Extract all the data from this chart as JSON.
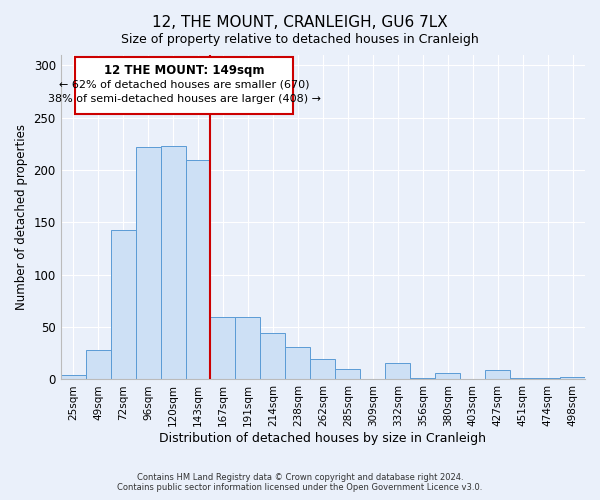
{
  "title": "12, THE MOUNT, CRANLEIGH, GU6 7LX",
  "subtitle": "Size of property relative to detached houses in Cranleigh",
  "xlabel": "Distribution of detached houses by size in Cranleigh",
  "ylabel": "Number of detached properties",
  "bar_labels": [
    "25sqm",
    "49sqm",
    "72sqm",
    "96sqm",
    "120sqm",
    "143sqm",
    "167sqm",
    "191sqm",
    "214sqm",
    "238sqm",
    "262sqm",
    "285sqm",
    "309sqm",
    "332sqm",
    "356sqm",
    "380sqm",
    "403sqm",
    "427sqm",
    "451sqm",
    "474sqm",
    "498sqm"
  ],
  "bar_values": [
    4,
    28,
    143,
    222,
    223,
    210,
    60,
    60,
    44,
    31,
    20,
    10,
    0,
    16,
    1,
    6,
    0,
    9,
    1,
    1,
    2
  ],
  "bar_color": "#cde0f5",
  "bar_edge_color": "#5b9bd5",
  "vline_x_index": 5,
  "vline_color": "#cc0000",
  "annotation_title": "12 THE MOUNT: 149sqm",
  "annotation_line1": "← 62% of detached houses are smaller (670)",
  "annotation_line2": "38% of semi-detached houses are larger (408) →",
  "annotation_box_color": "#cc0000",
  "ylim": [
    0,
    310
  ],
  "yticks": [
    0,
    50,
    100,
    150,
    200,
    250,
    300
  ],
  "footer1": "Contains HM Land Registry data © Crown copyright and database right 2024.",
  "footer2": "Contains public sector information licensed under the Open Government Licence v3.0.",
  "bg_color": "#eaf0fa",
  "plot_bg_color": "#eaf0fa",
  "grid_color": "#ffffff",
  "title_fontsize": 11,
  "subtitle_fontsize": 9
}
